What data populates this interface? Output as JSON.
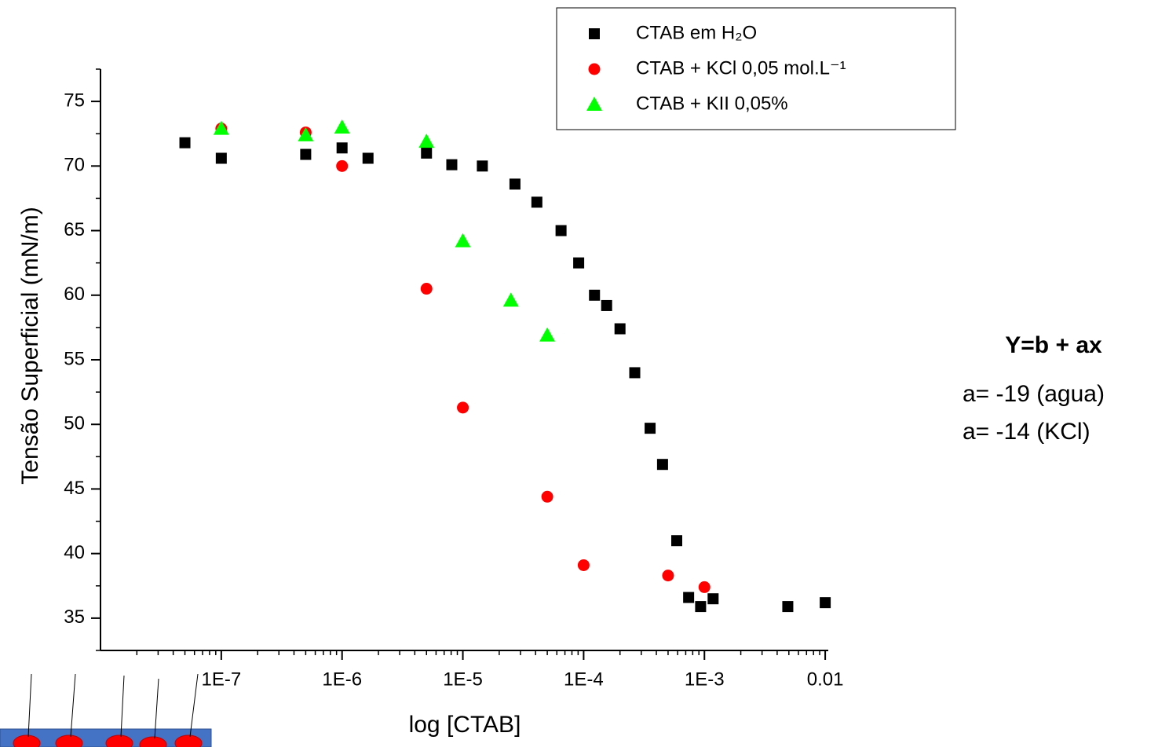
{
  "chart_data": {
    "type": "scatter",
    "x_label": "log [CTAB]",
    "y_label": "Tensão Superficial (mN/m)",
    "x_log": true,
    "xlim": [
      1e-08,
      0.0106
    ],
    "ylim": [
      32.5,
      77.5
    ],
    "xticks": [
      {
        "value": 1e-07,
        "label": "1E-7"
      },
      {
        "value": 1e-06,
        "label": "1E-6"
      },
      {
        "value": 1e-05,
        "label": "1E-5"
      },
      {
        "value": 0.0001,
        "label": "1E-4"
      },
      {
        "value": 0.001,
        "label": "1E-3"
      },
      0.01
    ],
    "yticks": [
      35,
      40,
      45,
      50,
      55,
      60,
      65,
      70,
      75
    ],
    "legend": "top-right",
    "series": [
      {
        "name": "CTAB em H₂O",
        "color": "#000000",
        "marker": "square",
        "x": [
          5e-08,
          1e-07,
          5e-07,
          1e-06,
          1.64e-06,
          5e-06,
          8.1e-06,
          1.45e-05,
          2.7e-05,
          4.1e-05,
          6.5e-05,
          9.1e-05,
          0.000123,
          0.000155,
          0.0002,
          0.000265,
          0.000355,
          0.00045,
          0.00059,
          0.00074,
          0.00093,
          0.00118,
          0.0049,
          0.01
        ],
        "values": [
          71.8,
          70.6,
          70.9,
          71.4,
          70.6,
          71.0,
          70.1,
          70.0,
          68.6,
          67.2,
          65.0,
          62.5,
          60.0,
          59.2,
          57.4,
          54.0,
          49.7,
          46.9,
          41.0,
          36.6,
          35.9,
          36.5,
          35.9,
          36.2
        ]
      },
      {
        "name": "CTAB + KCl 0,05 mol.L⁻¹",
        "color": "#ff0000",
        "marker": "circle",
        "x": [
          1e-07,
          5e-07,
          1e-06,
          5e-06,
          1e-05,
          5e-05,
          0.0001,
          0.0005,
          0.001
        ],
        "values": [
          72.9,
          72.6,
          70.0,
          60.5,
          51.3,
          44.4,
          39.1,
          38.3,
          37.4
        ]
      },
      {
        "name": "CTAB + KII 0,05%",
        "color": "#00ff00",
        "marker": "triangle",
        "x": [
          1e-07,
          5e-07,
          1e-06,
          5e-06,
          1e-05,
          2.5e-05,
          5e-05
        ],
        "values": [
          72.9,
          72.4,
          73.0,
          71.9,
          64.2,
          59.6,
          56.9
        ]
      }
    ],
    "annotations": [
      "Y=b + ax",
      "a= -19 (agua)",
      "a= -14 (KCl)"
    ]
  }
}
